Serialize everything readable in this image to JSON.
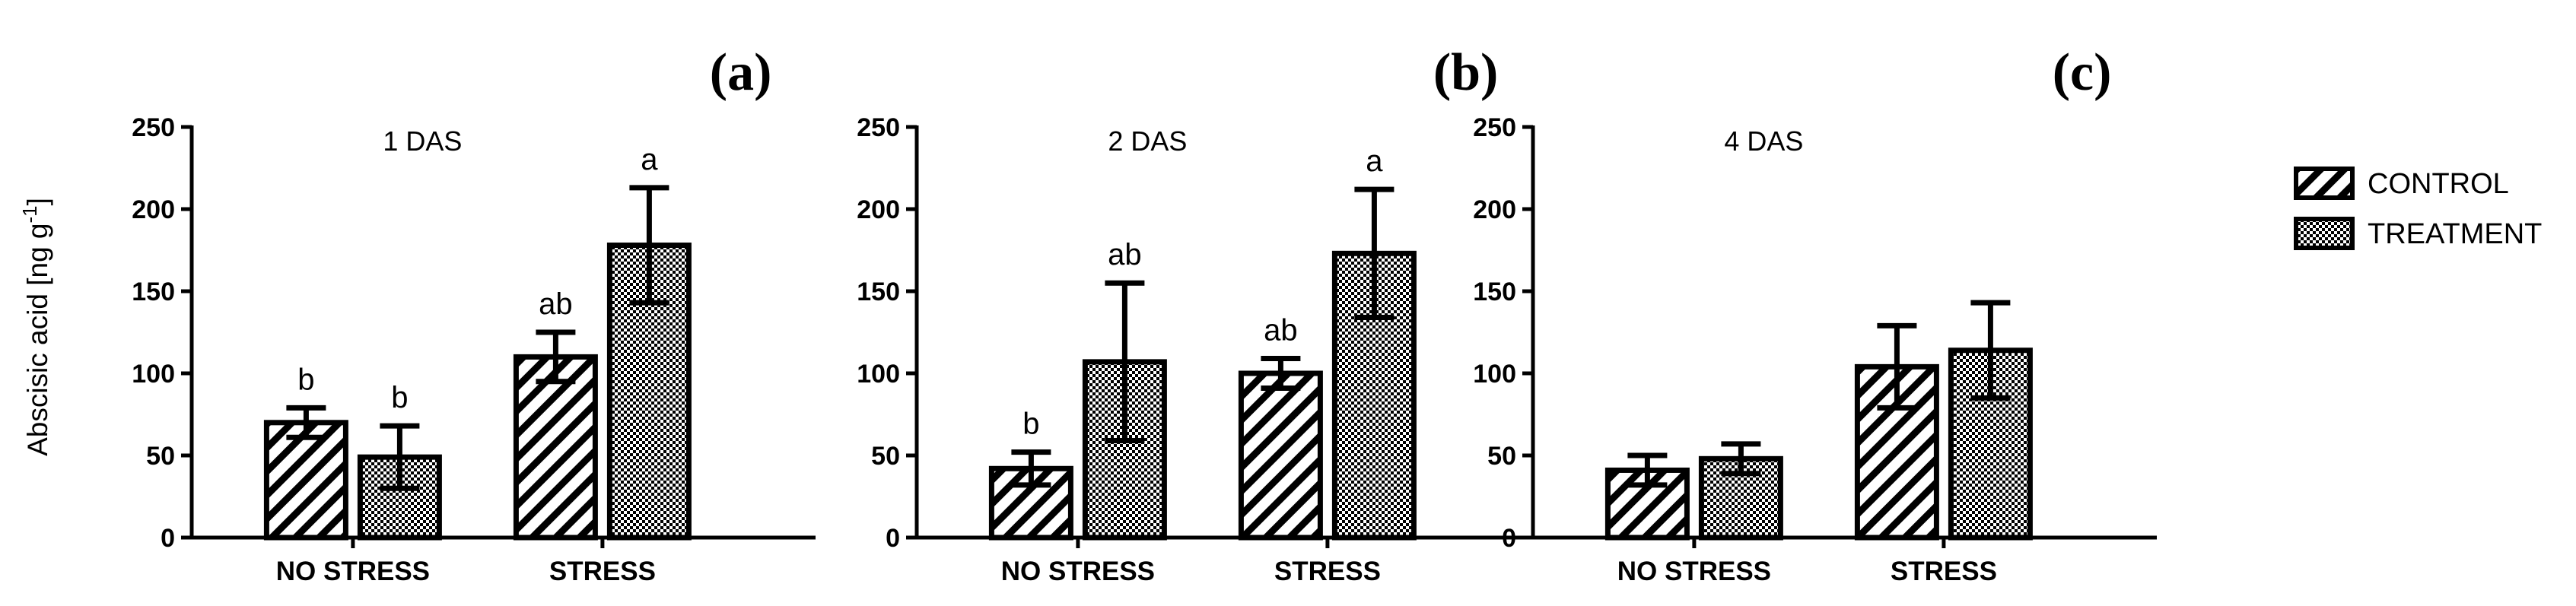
{
  "legend": {
    "control": "CONTROL",
    "treatment": "TREATMENT"
  },
  "y_axis": {
    "label_main": "Abscisic acid [ng g",
    "label_sup": "-1",
    "label_end": "]"
  },
  "colors": {
    "axis": "#000000",
    "background": "#ffffff"
  },
  "chart_data": [
    {
      "type": "bar",
      "panel": "(a)",
      "title": "1 DAS",
      "categories": [
        "NO STRESS",
        "STRESS"
      ],
      "ylim": [
        0,
        250
      ],
      "yticks": [
        0,
        50,
        100,
        150,
        200,
        250
      ],
      "series": [
        {
          "name": "CONTROL",
          "values": [
            70,
            110
          ],
          "errors": [
            9,
            15
          ],
          "letters": [
            "b",
            "ab"
          ]
        },
        {
          "name": "TREATMENT",
          "values": [
            49,
            178
          ],
          "errors": [
            19,
            35
          ],
          "letters": [
            "b",
            "a"
          ]
        }
      ]
    },
    {
      "type": "bar",
      "panel": "(b)",
      "title": "2 DAS",
      "categories": [
        "NO STRESS",
        "STRESS"
      ],
      "ylim": [
        0,
        250
      ],
      "yticks": [
        0,
        50,
        100,
        150,
        200,
        250
      ],
      "series": [
        {
          "name": "CONTROL",
          "values": [
            42,
            100
          ],
          "errors": [
            10,
            9
          ],
          "letters": [
            "b",
            "ab"
          ]
        },
        {
          "name": "TREATMENT",
          "values": [
            107,
            173
          ],
          "errors": [
            48,
            39
          ],
          "letters": [
            "ab",
            "a"
          ]
        }
      ]
    },
    {
      "type": "bar",
      "panel": "(c)",
      "title": "4 DAS",
      "categories": [
        "NO STRESS",
        "STRESS"
      ],
      "ylim": [
        0,
        250
      ],
      "yticks": [
        0,
        50,
        100,
        150,
        200,
        250
      ],
      "series": [
        {
          "name": "CONTROL",
          "values": [
            41,
            104
          ],
          "errors": [
            9,
            25
          ],
          "letters": [
            "",
            ""
          ]
        },
        {
          "name": "TREATMENT",
          "values": [
            48,
            114
          ],
          "errors": [
            9,
            29
          ],
          "letters": [
            "",
            ""
          ]
        }
      ]
    }
  ]
}
